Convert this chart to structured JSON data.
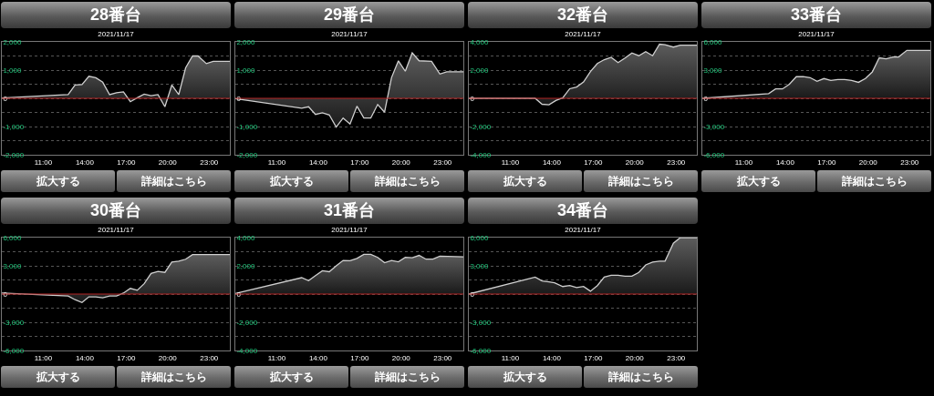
{
  "chart_data": [
    {
      "type": "area",
      "title": "28番台",
      "subtitle": "2021/11/17",
      "annotations": [
        "拡大する",
        "詳細はこちら"
      ],
      "x": [
        8,
        12.8,
        13.3,
        13.8,
        14.3,
        14.8,
        15.3,
        15.8,
        16.3,
        16.8,
        17.3,
        17.8,
        18.3,
        18.8,
        19.3,
        19.8,
        20.3,
        20.8,
        21.3,
        21.8,
        22.2,
        22.8,
        23.3,
        24.5
      ],
      "series": [
        {
          "color": "#d0d0d0",
          "values": [
            10,
            130,
            470,
            490,
            780,
            730,
            570,
            130,
            200,
            230,
            -120,
            20,
            150,
            90,
            130,
            -300,
            470,
            130,
            1080,
            1500,
            1500,
            1230,
            1310,
            1310
          ]
        }
      ],
      "xlim": [
        8,
        24.5
      ],
      "xticks": [
        {
          "value": 11,
          "label": "11:00"
        },
        {
          "value": 14,
          "label": "14:00"
        },
        {
          "value": 17,
          "label": "17:00"
        },
        {
          "value": 20,
          "label": "20:00"
        },
        {
          "value": 23,
          "label": "23:00"
        }
      ],
      "ylim": [
        -2000,
        2000
      ],
      "yticks": [
        {
          "value": -2000,
          "label": "-2,000"
        },
        {
          "value": -1500,
          "label": null
        },
        {
          "value": -1000,
          "label": "-1,000"
        },
        {
          "value": -500,
          "label": null
        },
        {
          "value": 0,
          "label": "0"
        },
        {
          "value": 500,
          "label": null
        },
        {
          "value": 1000,
          "label": "1,000"
        },
        {
          "value": 1500,
          "label": null
        },
        {
          "value": 2000,
          "label": "2,000"
        }
      ],
      "grid": "y",
      "ref_lines": [
        {
          "axis": "y",
          "value": 0,
          "color": "#b22222"
        }
      ]
    },
    {
      "type": "area",
      "title": "29番台",
      "subtitle": "2021/11/17",
      "annotations": [
        "拡大する",
        "詳細はこちら"
      ],
      "x": [
        8,
        12.8,
        13.3,
        13.8,
        14.3,
        14.8,
        15.3,
        15.8,
        16.3,
        16.8,
        17.3,
        17.8,
        18.3,
        18.8,
        19.3,
        19.8,
        20.3,
        20.8,
        21.3,
        22.2,
        22.8,
        23.3,
        24.5
      ],
      "series": [
        {
          "color": "#d0d0d0",
          "values": [
            -10,
            -350,
            -300,
            -570,
            -510,
            -590,
            -1020,
            -700,
            -910,
            -280,
            -700,
            -700,
            -220,
            -490,
            730,
            1330,
            960,
            1610,
            1330,
            1310,
            860,
            940,
            940
          ]
        }
      ],
      "xlim": [
        8,
        24.5
      ],
      "xticks": [
        {
          "value": 11,
          "label": "11:00"
        },
        {
          "value": 14,
          "label": "14:00"
        },
        {
          "value": 17,
          "label": "17:00"
        },
        {
          "value": 20,
          "label": "20:00"
        },
        {
          "value": 23,
          "label": "23:00"
        }
      ],
      "ylim": [
        -2000,
        2000
      ],
      "yticks": [
        {
          "value": -2000,
          "label": "-2,000"
        },
        {
          "value": -1500,
          "label": null
        },
        {
          "value": -1000,
          "label": "-1,000"
        },
        {
          "value": -500,
          "label": null
        },
        {
          "value": 0,
          "label": "0"
        },
        {
          "value": 500,
          "label": null
        },
        {
          "value": 1000,
          "label": "1,000"
        },
        {
          "value": 1500,
          "label": null
        },
        {
          "value": 2000,
          "label": "2,000"
        }
      ],
      "grid": "y",
      "ref_lines": [
        {
          "axis": "y",
          "value": 0,
          "color": "#b22222"
        }
      ]
    },
    {
      "type": "area",
      "title": "32番台",
      "subtitle": "2021/11/17",
      "annotations": [
        "拡大する",
        "詳細はこちら"
      ],
      "x": [
        8,
        12.8,
        13.3,
        13.8,
        14.3,
        14.8,
        15.3,
        15.8,
        16.3,
        16.8,
        17.3,
        17.8,
        18.3,
        18.8,
        19.3,
        19.8,
        20.3,
        20.8,
        21.3,
        21.8,
        22.2,
        22.8,
        23.3,
        24.5
      ],
      "series": [
        {
          "color": "#d0d0d0",
          "values": [
            0,
            0,
            -420,
            -460,
            -150,
            40,
            680,
            800,
            1160,
            1900,
            2470,
            2740,
            2910,
            2530,
            2850,
            3210,
            3020,
            3310,
            3020,
            3840,
            3800,
            3630,
            3760,
            3760
          ]
        }
      ],
      "xlim": [
        8,
        24.5
      ],
      "xticks": [
        {
          "value": 11,
          "label": "11:00"
        },
        {
          "value": 14,
          "label": "14:00"
        },
        {
          "value": 17,
          "label": "17:00"
        },
        {
          "value": 20,
          "label": "20:00"
        },
        {
          "value": 23,
          "label": "23:00"
        }
      ],
      "ylim": [
        -4000,
        4000
      ],
      "yticks": [
        {
          "value": -4000,
          "label": "-4,000"
        },
        {
          "value": -3000,
          "label": null
        },
        {
          "value": -2000,
          "label": "-2,000"
        },
        {
          "value": -1000,
          "label": null
        },
        {
          "value": 0,
          "label": "0"
        },
        {
          "value": 1000,
          "label": null
        },
        {
          "value": 2000,
          "label": "2,000"
        },
        {
          "value": 3000,
          "label": null
        },
        {
          "value": 4000,
          "label": "4,000"
        }
      ],
      "grid": "y",
      "ref_lines": [
        {
          "axis": "y",
          "value": 0,
          "color": "#b22222"
        }
      ]
    },
    {
      "type": "area",
      "title": "33番台",
      "subtitle": "2021/11/17",
      "annotations": [
        "拡大する",
        "詳細はこちら"
      ],
      "x": [
        8,
        12.8,
        13.3,
        13.8,
        14.3,
        14.8,
        15.3,
        15.8,
        16.3,
        16.8,
        17.3,
        17.8,
        18.3,
        18.8,
        19.3,
        19.8,
        20.3,
        20.8,
        21.3,
        21.8,
        22.2,
        22.8,
        24.5
      ],
      "series": [
        {
          "color": "#d0d0d0",
          "values": [
            0,
            500,
            1000,
            1000,
            1500,
            2300,
            2300,
            2200,
            1800,
            2100,
            1900,
            2000,
            2000,
            1900,
            1700,
            2100,
            2800,
            4300,
            4200,
            4400,
            4400,
            5100,
            5100
          ]
        }
      ],
      "xlim": [
        8,
        24.5
      ],
      "xticks": [
        {
          "value": 11,
          "label": "11:00"
        },
        {
          "value": 14,
          "label": "14:00"
        },
        {
          "value": 17,
          "label": "17:00"
        },
        {
          "value": 20,
          "label": "20:00"
        },
        {
          "value": 23,
          "label": "23:00"
        }
      ],
      "ylim": [
        -6000,
        6000
      ],
      "yticks": [
        {
          "value": -6000,
          "label": "-6,000"
        },
        {
          "value": -4500,
          "label": null
        },
        {
          "value": -3000,
          "label": "-3,000"
        },
        {
          "value": -1500,
          "label": null
        },
        {
          "value": 0,
          "label": "0"
        },
        {
          "value": 1500,
          "label": null
        },
        {
          "value": 3000,
          "label": "3,000"
        },
        {
          "value": 4500,
          "label": null
        },
        {
          "value": 6000,
          "label": "6,000"
        }
      ],
      "grid": "y",
      "ref_lines": [
        {
          "axis": "y",
          "value": 0,
          "color": "#b22222"
        }
      ]
    },
    {
      "type": "area",
      "title": "30番台",
      "subtitle": "2021/11/17",
      "annotations": [
        "拡大する",
        "詳細はこちら"
      ],
      "x": [
        8,
        12.8,
        13.3,
        13.8,
        14.3,
        14.8,
        15.3,
        15.8,
        16.3,
        16.8,
        17.3,
        17.8,
        18.3,
        18.8,
        19.3,
        19.8,
        20.3,
        20.8,
        21.3,
        21.8,
        24.5
      ],
      "series": [
        {
          "color": "#d0d0d0",
          "values": [
            100,
            -200,
            -600,
            -900,
            -300,
            -300,
            -400,
            -200,
            -200,
            100,
            600,
            400,
            1100,
            2200,
            2400,
            2300,
            3400,
            3500,
            3700,
            4200,
            4200
          ]
        }
      ],
      "xlim": [
        8,
        24.5
      ],
      "xticks": [
        {
          "value": 11,
          "label": "11:00"
        },
        {
          "value": 14,
          "label": "14:00"
        },
        {
          "value": 17,
          "label": "17:00"
        },
        {
          "value": 20,
          "label": "20:00"
        },
        {
          "value": 23,
          "label": "23:00"
        }
      ],
      "ylim": [
        -6000,
        6000
      ],
      "yticks": [
        {
          "value": -6000,
          "label": "-6,000"
        },
        {
          "value": -4500,
          "label": null
        },
        {
          "value": -3000,
          "label": "-3,000"
        },
        {
          "value": -1500,
          "label": null
        },
        {
          "value": 0,
          "label": "0"
        },
        {
          "value": 1500,
          "label": null
        },
        {
          "value": 3000,
          "label": "3,000"
        },
        {
          "value": 4500,
          "label": null
        },
        {
          "value": 6000,
          "label": "6,000"
        }
      ],
      "grid": "y",
      "ref_lines": [
        {
          "axis": "y",
          "value": 0,
          "color": "#b22222"
        }
      ]
    },
    {
      "type": "area",
      "title": "31番台",
      "subtitle": "2021/11/17",
      "annotations": [
        "拡大する",
        "詳細はこちら"
      ],
      "x": [
        8,
        12.8,
        13.3,
        13.8,
        14.3,
        14.8,
        15.3,
        15.8,
        16.3,
        16.8,
        17.3,
        17.8,
        18.3,
        18.8,
        19.3,
        19.8,
        20.3,
        20.8,
        21.3,
        21.8,
        22.3,
        22.8,
        24.5
      ],
      "series": [
        {
          "color": "#d0d0d0",
          "values": [
            40,
            1160,
            950,
            1310,
            1650,
            1580,
            2000,
            2380,
            2360,
            2530,
            2810,
            2810,
            2600,
            2220,
            2380,
            2280,
            2600,
            2570,
            2740,
            2470,
            2470,
            2680,
            2640
          ]
        }
      ],
      "xlim": [
        8,
        24.5
      ],
      "xticks": [
        {
          "value": 11,
          "label": "11:00"
        },
        {
          "value": 14,
          "label": "14:00"
        },
        {
          "value": 17,
          "label": "17:00"
        },
        {
          "value": 20,
          "label": "20:00"
        },
        {
          "value": 23,
          "label": "23:00"
        }
      ],
      "ylim": [
        -4000,
        4000
      ],
      "yticks": [
        {
          "value": -4000,
          "label": "-4,000"
        },
        {
          "value": -3000,
          "label": null
        },
        {
          "value": -2000,
          "label": "-2,000"
        },
        {
          "value": -1000,
          "label": null
        },
        {
          "value": 0,
          "label": "0"
        },
        {
          "value": 1000,
          "label": null
        },
        {
          "value": 2000,
          "label": "2,000"
        },
        {
          "value": 3000,
          "label": null
        },
        {
          "value": 4000,
          "label": "4,000"
        }
      ],
      "grid": "y",
      "ref_lines": [
        {
          "axis": "y",
          "value": 0,
          "color": "#b22222"
        }
      ]
    },
    {
      "type": "area",
      "title": "34番台",
      "subtitle": "2021/11/17",
      "annotations": [
        "拡大する",
        "詳細はこちら"
      ],
      "x": [
        8,
        12.8,
        13.3,
        13.8,
        14.2,
        14.8,
        15.3,
        15.8,
        16.3,
        16.8,
        17.3,
        17.8,
        18.3,
        18.8,
        19.3,
        19.8,
        20.3,
        20.8,
        21.3,
        21.8,
        22.2,
        22.8,
        23.3,
        24.5
      ],
      "series": [
        {
          "color": "#d0d0d0",
          "values": [
            0,
            1800,
            1400,
            1300,
            1200,
            800,
            900,
            700,
            800,
            300,
            900,
            1800,
            2000,
            2000,
            1900,
            1900,
            2300,
            3100,
            3400,
            3500,
            3500,
            5400,
            6000,
            6000
          ]
        }
      ],
      "xlim": [
        8,
        24.5
      ],
      "xticks": [
        {
          "value": 11,
          "label": "11:00"
        },
        {
          "value": 14,
          "label": "14:00"
        },
        {
          "value": 17,
          "label": "17:00"
        },
        {
          "value": 20,
          "label": "20:00"
        },
        {
          "value": 23,
          "label": "23:00"
        }
      ],
      "ylim": [
        -6000,
        6000
      ],
      "yticks": [
        {
          "value": -6000,
          "label": "-6,000"
        },
        {
          "value": -4500,
          "label": null
        },
        {
          "value": -3000,
          "label": "-3,000"
        },
        {
          "value": -1500,
          "label": null
        },
        {
          "value": 0,
          "label": "0"
        },
        {
          "value": 1500,
          "label": null
        },
        {
          "value": 3000,
          "label": "3,000"
        },
        {
          "value": 4500,
          "label": null
        },
        {
          "value": 6000,
          "label": "6,000"
        }
      ],
      "grid": "y",
      "ref_lines": [
        {
          "axis": "y",
          "value": 0,
          "color": "#b22222"
        }
      ]
    }
  ]
}
